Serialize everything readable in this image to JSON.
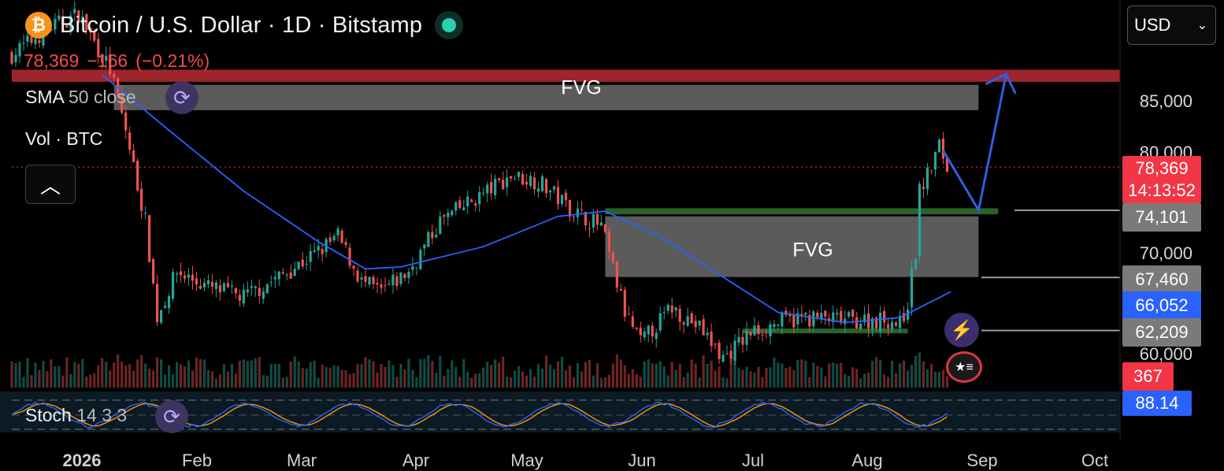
{
  "header": {
    "symbol_icon": "bitcoin-icon",
    "title": "Bitcoin / U.S. Dollar · 1D · Bitstamp",
    "last": "78,369",
    "change": "−166",
    "change_pct": "(−0.21%)"
  },
  "indicators": {
    "sma": "SMA",
    "sma_param": "50 close",
    "vol": "Vol · BTC",
    "stoch": "Stoch",
    "stoch_params": "14 3 3"
  },
  "currency": {
    "value": "USD"
  },
  "price_axis": {
    "ticks": [
      "85,000",
      "80,000",
      "70,000",
      "60,000"
    ],
    "labels": [
      {
        "text": "78,369",
        "subtext": "14:13:52",
        "color": "#f23645"
      },
      {
        "text": "74,101",
        "color": "#7a7a7a"
      },
      {
        "text": "67,460",
        "color": "#7a7a7a"
      },
      {
        "text": "66,052",
        "color": "#2962ff"
      },
      {
        "text": "62,209",
        "color": "#7a7a7a"
      },
      {
        "text": "367",
        "color": "#f23645"
      },
      {
        "text": "88.14",
        "color": "#2962ff"
      }
    ]
  },
  "time_axis": [
    "2026",
    "Feb",
    "Mar",
    "Apr",
    "May",
    "Jun",
    "Jul",
    "Aug",
    "Sep",
    "Oct"
  ],
  "annotations": {
    "fvg_top": "FVG",
    "fvg_mid": "FVG"
  },
  "colors": {
    "up": "#26a69a",
    "down": "#ef5350",
    "sma": "#2962ff",
    "resistance_zone": "#a8272f",
    "fvg_zone": "#6b6b6b",
    "support_zone": "#2e6b2e",
    "projection": "#2f5fe0",
    "stoch_k": "#2962ff",
    "stoch_d": "#ff9800"
  },
  "chart_data": {
    "type": "candlestick",
    "title": "Bitcoin / U.S. Dollar · 1D · Bitstamp",
    "x_range": [
      "2026-01-01",
      "2026-10-07"
    ],
    "y_range": [
      56000,
      89000
    ],
    "price_path": [
      {
        "date": "2026-01-01",
        "close": 89500
      },
      {
        "date": "2026-01-10",
        "close": 92000
      },
      {
        "date": "2026-01-18",
        "close": 93500
      },
      {
        "date": "2026-01-26",
        "close": 88000
      },
      {
        "date": "2026-01-30",
        "close": 82000
      },
      {
        "date": "2026-02-04",
        "close": 73000
      },
      {
        "date": "2026-02-07",
        "close": 63500
      },
      {
        "date": "2026-02-12",
        "close": 68000
      },
      {
        "date": "2026-02-20",
        "close": 66500
      },
      {
        "date": "2026-03-01",
        "close": 65500
      },
      {
        "date": "2026-03-10",
        "close": 67500
      },
      {
        "date": "2026-03-20",
        "close": 70000
      },
      {
        "date": "2026-03-25",
        "close": 71500
      },
      {
        "date": "2026-03-31",
        "close": 67000
      },
      {
        "date": "2026-04-05",
        "close": 66000
      },
      {
        "date": "2026-04-12",
        "close": 68000
      },
      {
        "date": "2026-04-20",
        "close": 73000
      },
      {
        "date": "2026-04-30",
        "close": 75500
      },
      {
        "date": "2026-05-08",
        "close": 77500
      },
      {
        "date": "2026-05-15",
        "close": 77000
      },
      {
        "date": "2026-05-24",
        "close": 74000
      },
      {
        "date": "2026-05-31",
        "close": 72500
      },
      {
        "date": "2026-06-06",
        "close": 64000
      },
      {
        "date": "2026-06-10",
        "close": 61000
      },
      {
        "date": "2026-06-18",
        "close": 64500
      },
      {
        "date": "2026-06-25",
        "close": 62500
      },
      {
        "date": "2026-07-01",
        "close": 59500
      },
      {
        "date": "2026-07-08",
        "close": 62000
      },
      {
        "date": "2026-07-15",
        "close": 63000
      },
      {
        "date": "2026-07-22",
        "close": 63500
      },
      {
        "date": "2026-08-01",
        "close": 63200
      },
      {
        "date": "2026-08-12",
        "close": 63300
      },
      {
        "date": "2026-08-15",
        "close": 62800
      },
      {
        "date": "2026-08-17",
        "close": 65000
      },
      {
        "date": "2026-08-19",
        "close": 70000
      },
      {
        "date": "2026-08-20",
        "close": 76000
      },
      {
        "date": "2026-08-22",
        "close": 77500
      },
      {
        "date": "2026-08-25",
        "close": 80500
      },
      {
        "date": "2026-08-27",
        "close": 78369
      }
    ],
    "sma50_path": [
      {
        "date": "2026-01-24",
        "value": 87500
      },
      {
        "date": "2026-02-10",
        "value": 82000
      },
      {
        "date": "2026-03-01",
        "value": 76000
      },
      {
        "date": "2026-03-20",
        "value": 71000
      },
      {
        "date": "2026-04-01",
        "value": 68300
      },
      {
        "date": "2026-04-10",
        "value": 68500
      },
      {
        "date": "2026-05-01",
        "value": 70500
      },
      {
        "date": "2026-05-20",
        "value": 73500
      },
      {
        "date": "2026-06-01",
        "value": 74000
      },
      {
        "date": "2026-06-15",
        "value": 71500
      },
      {
        "date": "2026-07-01",
        "value": 67500
      },
      {
        "date": "2026-07-15",
        "value": 64000
      },
      {
        "date": "2026-08-01",
        "value": 63000
      },
      {
        "date": "2026-08-15",
        "value": 63500
      },
      {
        "date": "2026-08-28",
        "value": 66052
      }
    ],
    "zones": [
      {
        "label": "",
        "from": 86800,
        "to": 88000,
        "start": "2026-01-01",
        "end": "2026-10-07"
      },
      {
        "label": "FVG",
        "from": 84000,
        "to": 86500,
        "start": "2026-01-27",
        "end": "2026-09-04"
      },
      {
        "label": "",
        "from": 73700,
        "to": 74300,
        "start": "2026-06-01",
        "end": "2026-09-09"
      },
      {
        "label": "FVG",
        "from": 67500,
        "to": 73500,
        "start": "2026-06-01",
        "end": "2026-09-04"
      },
      {
        "label": "",
        "from": 62100,
        "to": 62400,
        "start": "2026-07-06",
        "end": "2026-08-17"
      }
    ],
    "levels": [
      74101,
      67460,
      62209
    ],
    "projection": [
      {
        "date": "2026-08-26",
        "value": 80000
      },
      {
        "date": "2026-09-04",
        "value": 74101
      },
      {
        "date": "2026-09-11",
        "value": 87500
      }
    ],
    "last_price": 78369,
    "sma_last": 66052,
    "volume_last": 367,
    "stoch_last": 88.14,
    "stoch_band": [
      20,
      80
    ]
  }
}
